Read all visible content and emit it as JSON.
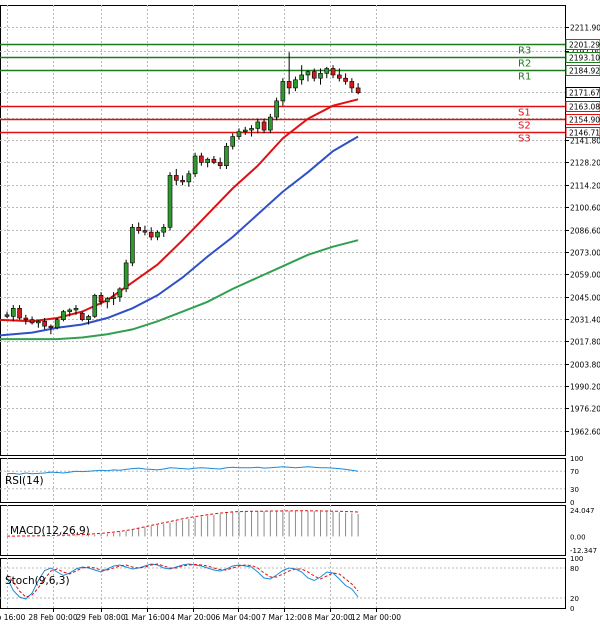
{
  "chart_data": {
    "type": "candlestick",
    "price_axis": {
      "ticks": [
        "2211.90",
        "2197.00",
        "2184.92",
        "2171.67",
        "2155.20",
        "2141.80",
        "2128.20",
        "2114.20",
        "2100.60",
        "2086.60",
        "2073.00",
        "2059.00",
        "2045.00",
        "2031.40",
        "2017.80",
        "2003.80",
        "1990.20",
        "1976.20",
        "1962.60"
      ]
    },
    "time_axis": {
      "labels": [
        "28 Feb 00:00",
        "29 Feb 08:00",
        "1 Mar 16:00",
        "4 Mar 20:00",
        "6 Mar 04:00",
        "7 Mar 12:00",
        "8 Mar 20:00",
        "12 Mar 00:00"
      ],
      "first_label_partial": "b 16:00"
    },
    "levels": [
      {
        "name": "R3",
        "value": 2201.29,
        "label": "2201.29",
        "color": "#1e7a1e"
      },
      {
        "name": "R2",
        "value": 2193.1,
        "label": "2193.10",
        "color": "#1e7a1e"
      },
      {
        "name": "R1",
        "value": 2184.92,
        "label": "2184.92",
        "color": "#1e7a1e"
      },
      {
        "name": "S1",
        "value": 2163.08,
        "label": "2163.08",
        "color": "#e01010"
      },
      {
        "name": "S2",
        "value": 2154.9,
        "label": "2154.90",
        "color": "#e01010"
      },
      {
        "name": "S3",
        "value": 2146.71,
        "label": "2146.71",
        "color": "#e01010"
      }
    ],
    "current_price": {
      "value": 2171.67,
      "label": "2171.67"
    },
    "candles": [
      [
        2034,
        2036,
        2032,
        2033
      ],
      [
        2033,
        2040,
        2030,
        2038
      ],
      [
        2038,
        2040,
        2031,
        2032
      ],
      [
        2032,
        2034,
        2028,
        2031
      ],
      [
        2031,
        2033,
        2028,
        2029
      ],
      [
        2029,
        2031,
        2026,
        2030
      ],
      [
        2030,
        2032,
        2025,
        2027
      ],
      [
        2027,
        2028,
        2022,
        2026
      ],
      [
        2026,
        2032,
        2025,
        2031
      ],
      [
        2031,
        2037,
        2030,
        2036
      ],
      [
        2036,
        2038,
        2033,
        2037
      ],
      [
        2037,
        2040,
        2034,
        2038
      ],
      [
        2035,
        2036,
        2030,
        2031
      ],
      [
        2031,
        2034,
        2028,
        2033
      ],
      [
        2033,
        2047,
        2032,
        2046
      ],
      [
        2046,
        2048,
        2040,
        2042
      ],
      [
        2042,
        2045,
        2038,
        2044
      ],
      [
        2044,
        2048,
        2040,
        2045
      ],
      [
        2045,
        2051,
        2042,
        2050
      ],
      [
        2050,
        2068,
        2048,
        2066
      ],
      [
        2066,
        2090,
        2064,
        2088
      ],
      [
        2088,
        2091,
        2084,
        2086
      ],
      [
        2086,
        2089,
        2083,
        2085
      ],
      [
        2085,
        2088,
        2080,
        2082
      ],
      [
        2082,
        2086,
        2080,
        2085
      ],
      [
        2085,
        2090,
        2082,
        2088
      ],
      [
        2088,
        2122,
        2086,
        2120
      ],
      [
        2120,
        2124,
        2114,
        2117
      ],
      [
        2117,
        2120,
        2114,
        2116
      ],
      [
        2116,
        2123,
        2113,
        2121
      ],
      [
        2121,
        2134,
        2119,
        2132
      ],
      [
        2132,
        2134,
        2126,
        2128
      ],
      [
        2128,
        2131,
        2125,
        2130
      ],
      [
        2130,
        2132,
        2127,
        2128
      ],
      [
        2128,
        2131,
        2124,
        2126
      ],
      [
        2126,
        2140,
        2124,
        2138
      ],
      [
        2138,
        2146,
        2136,
        2144
      ],
      [
        2144,
        2149,
        2142,
        2147
      ],
      [
        2147,
        2150,
        2145,
        2148
      ],
      [
        2148,
        2151,
        2144,
        2149
      ],
      [
        2149,
        2155,
        2146,
        2153
      ],
      [
        2153,
        2155,
        2146,
        2148
      ],
      [
        2148,
        2158,
        2146,
        2156
      ],
      [
        2156,
        2168,
        2154,
        2166
      ],
      [
        2166,
        2180,
        2163,
        2178
      ],
      [
        2178,
        2196,
        2170,
        2174
      ],
      [
        2174,
        2181,
        2172,
        2179
      ],
      [
        2179,
        2188,
        2176,
        2182
      ],
      [
        2182,
        2185,
        2178,
        2184
      ],
      [
        2184,
        2186,
        2178,
        2180
      ],
      [
        2180,
        2186,
        2176,
        2183
      ],
      [
        2183,
        2187,
        2180,
        2186
      ],
      [
        2186,
        2188,
        2180,
        2182
      ],
      [
        2182,
        2186,
        2178,
        2180
      ],
      [
        2180,
        2183,
        2176,
        2178
      ],
      [
        2178,
        2180,
        2171,
        2174
      ],
      [
        2174,
        2177,
        2170,
        2171
      ]
    ],
    "moving_averages": [
      {
        "color": "#e01010",
        "points": [
          [
            -2,
            2031
          ],
          [
            4,
            2030
          ],
          [
            8,
            2032
          ],
          [
            12,
            2036
          ],
          [
            16,
            2043
          ],
          [
            20,
            2054
          ],
          [
            24,
            2065
          ],
          [
            28,
            2080
          ],
          [
            32,
            2096
          ],
          [
            36,
            2112
          ],
          [
            40,
            2126
          ],
          [
            44,
            2143
          ],
          [
            48,
            2155
          ],
          [
            52,
            2163
          ],
          [
            56,
            2167
          ]
        ]
      },
      {
        "color": "#3050c8",
        "points": [
          [
            -2,
            2021
          ],
          [
            4,
            2023
          ],
          [
            8,
            2026
          ],
          [
            12,
            2028
          ],
          [
            16,
            2032
          ],
          [
            20,
            2038
          ],
          [
            24,
            2046
          ],
          [
            28,
            2057
          ],
          [
            32,
            2070
          ],
          [
            36,
            2082
          ],
          [
            40,
            2096
          ],
          [
            44,
            2110
          ],
          [
            48,
            2122
          ],
          [
            52,
            2135
          ],
          [
            56,
            2144
          ]
        ]
      },
      {
        "color": "#30a050",
        "points": [
          [
            -2,
            2019
          ],
          [
            4,
            2019
          ],
          [
            8,
            2019
          ],
          [
            12,
            2020
          ],
          [
            16,
            2022
          ],
          [
            20,
            2025
          ],
          [
            24,
            2030
          ],
          [
            28,
            2036
          ],
          [
            32,
            2042
          ],
          [
            36,
            2050
          ],
          [
            40,
            2057
          ],
          [
            44,
            2064
          ],
          [
            48,
            2071
          ],
          [
            52,
            2076
          ],
          [
            56,
            2080
          ]
        ]
      }
    ],
    "indicators": [
      {
        "name": "RSI(14)",
        "ticks": [
          "100",
          "70",
          "30",
          "0"
        ],
        "color": "#1a8bd8",
        "levels": [
          70,
          30
        ],
        "values": [
          64,
          65,
          63,
          66,
          64,
          65,
          66,
          68,
          67,
          66,
          68,
          70,
          69,
          70,
          71,
          72,
          71,
          73,
          72,
          74,
          76,
          77,
          75,
          74,
          73,
          75,
          78,
          77,
          76,
          75,
          77,
          78,
          77,
          76,
          75,
          78,
          79,
          78,
          78,
          78,
          79,
          77,
          78,
          79,
          80,
          79,
          78,
          79,
          80,
          79,
          78,
          78,
          77,
          76,
          74,
          72,
          70
        ]
      },
      {
        "name": "MACD(12,26,9)",
        "ticks": [
          "24.047",
          "0.00",
          "-12.347"
        ],
        "histogram": [
          0.2,
          0.2,
          0.3,
          0.3,
          0.3,
          0.3,
          0.3,
          0.4,
          0.5,
          0.6,
          0.7,
          0.9,
          1.1,
          1.3,
          1.6,
          2.0,
          2.4,
          3.0,
          3.8,
          4.8,
          6.2,
          7.4,
          8.4,
          9.4,
          10.2,
          11.2,
          12.6,
          13.8,
          14.8,
          15.8,
          17.0,
          18.0,
          18.8,
          19.6,
          20.4,
          21.6,
          22.2,
          22.6,
          22.8,
          22.8,
          22.9,
          22.8,
          22.9,
          23.0,
          23.1,
          23.2,
          23.3,
          23.2,
          23.1,
          23.0,
          22.8,
          22.6,
          22.4,
          22.0,
          21.6,
          21.0,
          20.4
        ],
        "signal": [
          0.3,
          0.3,
          0.4,
          0.4,
          0.5,
          0.6,
          0.7,
          0.8,
          1.0,
          1.1,
          1.3,
          1.5,
          1.8,
          2.0,
          2.4,
          2.8,
          3.3,
          3.9,
          4.6,
          5.4,
          6.4,
          7.6,
          8.8,
          10.0,
          11.2,
          12.4,
          13.6,
          14.8,
          16.0,
          17.0,
          18.0,
          18.9,
          19.8,
          20.5,
          21.2,
          21.8,
          22.3,
          22.6,
          22.8,
          22.9,
          23.0,
          23.0,
          23.1,
          23.1,
          23.2,
          23.2,
          23.3,
          23.3,
          23.3,
          23.2,
          23.2,
          23.1,
          23.0,
          22.9,
          22.7,
          22.5,
          22.2
        ]
      },
      {
        "name": "Stoch(9,6,3)",
        "ticks": [
          "100",
          "80",
          "20",
          "0"
        ],
        "levels": [
          80,
          20
        ],
        "k": [
          60,
          35,
          22,
          18,
          30,
          55,
          75,
          80,
          72,
          65,
          70,
          78,
          82,
          80,
          76,
          72,
          78,
          84,
          86,
          82,
          78,
          80,
          84,
          88,
          86,
          80,
          78,
          82,
          86,
          88,
          86,
          84,
          80,
          76,
          74,
          78,
          84,
          86,
          84,
          82,
          72,
          60,
          58,
          66,
          75,
          80,
          78,
          72,
          60,
          55,
          62,
          72,
          70,
          58,
          45,
          38,
          22
        ],
        "d": [
          66,
          52,
          34,
          22,
          26,
          40,
          58,
          74,
          78,
          72,
          68,
          74,
          80,
          82,
          80,
          76,
          76,
          80,
          84,
          86,
          82,
          80,
          82,
          86,
          88,
          84,
          80,
          80,
          84,
          86,
          87,
          86,
          84,
          80,
          77,
          76,
          80,
          84,
          86,
          85,
          80,
          70,
          62,
          62,
          68,
          74,
          78,
          78,
          72,
          64,
          58,
          64,
          70,
          68,
          58,
          48,
          34
        ]
      }
    ]
  }
}
